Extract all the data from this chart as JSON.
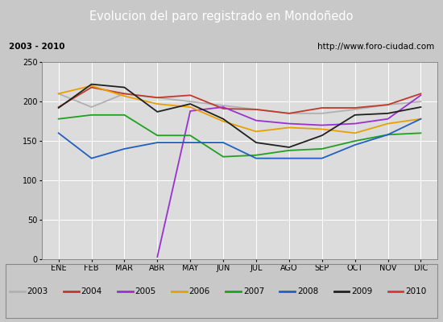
{
  "title": "Evolucion del paro registrado en Mondoñedo",
  "subtitle_left": "2003 - 2010",
  "subtitle_right": "http://www.foro-ciudad.com",
  "xlabel_ticks": [
    "ENE",
    "FEB",
    "MAR",
    "ABR",
    "MAY",
    "JUN",
    "JUL",
    "AGO",
    "SEP",
    "OCT",
    "NOV",
    "DIC"
  ],
  "ylim": [
    0,
    250
  ],
  "yticks": [
    0,
    50,
    100,
    150,
    200,
    250
  ],
  "fig_facecolor": "#c8c8c8",
  "title_facecolor": "#4f81bd",
  "chart_facecolor": "#dcdcdc",
  "sub_facecolor": "#f0f0f0",
  "series": {
    "2003": {
      "color": "#b0b0b0",
      "data": [
        210,
        193,
        210,
        205,
        200,
        195,
        190,
        185,
        185,
        190,
        196,
        200
      ]
    },
    "2004": {
      "color": "#c0392b",
      "data": [
        193,
        218,
        210,
        205,
        208,
        191,
        190,
        185,
        192,
        192,
        196,
        210
      ]
    },
    "2005": {
      "color": "#9b30d0",
      "data": [
        null,
        null,
        null,
        3,
        188,
        193,
        176,
        172,
        170,
        172,
        178,
        208
      ]
    },
    "2006": {
      "color": "#e8a000",
      "data": [
        210,
        220,
        207,
        197,
        193,
        175,
        162,
        167,
        165,
        160,
        172,
        178
      ]
    },
    "2007": {
      "color": "#20a020",
      "data": [
        178,
        183,
        183,
        157,
        157,
        130,
        132,
        138,
        140,
        150,
        158,
        160
      ]
    },
    "2008": {
      "color": "#2060c0",
      "data": [
        160,
        128,
        140,
        148,
        148,
        148,
        128,
        128,
        128,
        145,
        158,
        178
      ]
    },
    "2009": {
      "color": "#202020",
      "data": [
        192,
        222,
        218,
        187,
        197,
        178,
        148,
        142,
        157,
        183,
        185,
        193
      ]
    },
    "2010": {
      "color": "#e83030",
      "data": [
        null,
        null,
        null,
        null,
        null,
        null,
        null,
        null,
        null,
        null,
        null,
        215
      ]
    }
  },
  "legend_order": [
    "2003",
    "2004",
    "2005",
    "2006",
    "2007",
    "2008",
    "2009",
    "2010"
  ]
}
